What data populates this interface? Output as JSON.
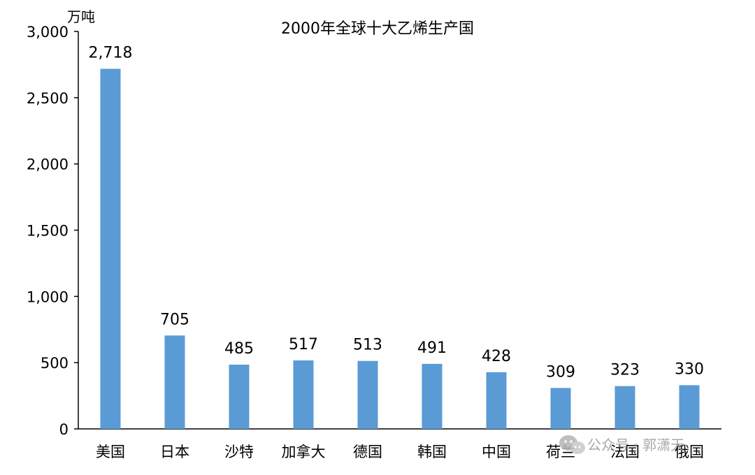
{
  "chart_data": {
    "type": "bar",
    "title": "2000年全球十大乙烯生产国",
    "unit": "万吨",
    "categories": [
      "美国",
      "日本",
      "沙特",
      "加拿大",
      "德国",
      "韩国",
      "中国",
      "荷兰",
      "法国",
      "俄国"
    ],
    "values": [
      2718,
      705,
      485,
      517,
      513,
      491,
      428,
      309,
      323,
      330
    ],
    "value_labels": [
      "2,718",
      "705",
      "485",
      "517",
      "513",
      "491",
      "428",
      "309",
      "323",
      "330"
    ],
    "ylim": [
      0,
      3000
    ],
    "yticks": [
      0,
      500,
      1000,
      1500,
      2000,
      2500,
      3000
    ],
    "ytick_labels": [
      "0",
      "500",
      "1,000",
      "1,500",
      "2,000",
      "2,500",
      "3,000"
    ],
    "grid": false,
    "legend": "none",
    "bar_color": "#5b9bd5"
  },
  "watermark": {
    "text": "公众号 · 郭潇天",
    "icon": "wechat-icon"
  }
}
